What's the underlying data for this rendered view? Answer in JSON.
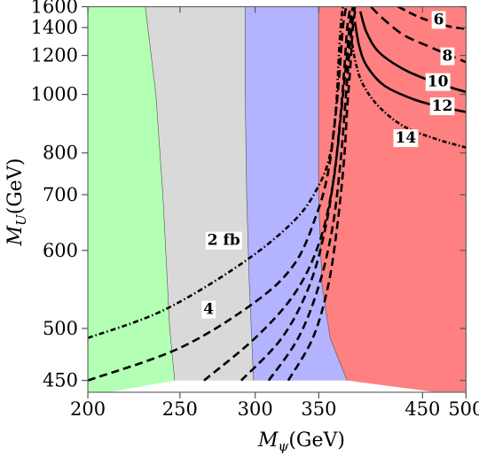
{
  "chart_data": {
    "type": "area",
    "xlabel": {
      "main": "M",
      "sub": "ψ",
      "unit": "(GeV)"
    },
    "ylabel": {
      "main": "M",
      "sub": "U",
      "unit": "(GeV)"
    },
    "xlim": [
      197,
      505
    ],
    "ylim": [
      440,
      1625
    ],
    "x_ticks": [
      200,
      250,
      300,
      350,
      450,
      500
    ],
    "y_ticks": [
      450,
      500,
      600,
      700,
      800,
      1000,
      1200,
      1400,
      1600
    ],
    "frame_top_y": 1600,
    "regions": [
      {
        "name": "green",
        "color": "#b3ffb3",
        "right_boundary": [
          [
            230,
            1600
          ],
          [
            236,
            1000
          ],
          [
            240,
            700
          ],
          [
            244,
            500
          ],
          [
            247,
            450
          ]
        ]
      },
      {
        "name": "gray",
        "color": "#d9d9d9",
        "right_boundary": [
          [
            293,
            1600
          ],
          [
            293,
            1000
          ],
          [
            294,
            700
          ],
          [
            296,
            550
          ],
          [
            299,
            450
          ]
        ]
      },
      {
        "name": "blue",
        "color": "#b3b3ff",
        "right_boundary": [
          [
            350,
            1600
          ],
          [
            350,
            1000
          ],
          [
            350,
            700
          ],
          [
            353,
            550
          ],
          [
            360,
            490
          ],
          [
            375,
            450
          ]
        ]
      },
      {
        "name": "red",
        "color": "#ff8080"
      }
    ],
    "contours": [
      {
        "label": "2 fb",
        "points": [
          [
            200,
            490
          ],
          [
            240,
            520
          ],
          [
            290,
            580
          ],
          [
            330,
            650
          ],
          [
            350,
            720
          ],
          [
            360,
            800
          ],
          [
            365,
            950
          ],
          [
            367,
            1150
          ],
          [
            369,
            1400
          ],
          [
            371,
            1600
          ]
        ]
      },
      {
        "label": "4",
        "points": [
          [
            200,
            450
          ],
          [
            250,
            480
          ],
          [
            300,
            530
          ],
          [
            330,
            580
          ],
          [
            348,
            660
          ],
          [
            358,
            750
          ],
          [
            364,
            900
          ],
          [
            368,
            1100
          ],
          [
            371,
            1400
          ],
          [
            374,
            1600
          ]
        ]
      },
      {
        "label": "",
        "points": [
          [
            265,
            450
          ],
          [
            300,
            490
          ],
          [
            330,
            540
          ],
          [
            350,
            610
          ],
          [
            362,
            720
          ],
          [
            368,
            880
          ],
          [
            372,
            1100
          ],
          [
            375,
            1400
          ],
          [
            378,
            1600
          ]
        ]
      },
      {
        "label": "",
        "points": [
          [
            290,
            450
          ],
          [
            320,
            490
          ],
          [
            342,
            550
          ],
          [
            356,
            640
          ],
          [
            365,
            780
          ],
          [
            370,
            950
          ],
          [
            374,
            1150
          ],
          [
            377,
            1400
          ],
          [
            380,
            1600
          ]
        ]
      },
      {
        "label": "",
        "points": [
          [
            310,
            450
          ],
          [
            333,
            490
          ],
          [
            350,
            550
          ],
          [
            362,
            640
          ],
          [
            369,
            780
          ],
          [
            373,
            950
          ],
          [
            376,
            1150
          ],
          [
            379,
            1400
          ],
          [
            382,
            1600
          ]
        ]
      },
      {
        "label": "",
        "points": [
          [
            325,
            450
          ],
          [
            345,
            490
          ],
          [
            358,
            550
          ],
          [
            366,
            640
          ],
          [
            372,
            780
          ],
          [
            375,
            950
          ],
          [
            378,
            1150
          ],
          [
            380,
            1400
          ],
          [
            383,
            1600
          ]
        ]
      },
      {
        "label": "6",
        "points": [
          [
            424,
            1600
          ],
          [
            450,
            1480
          ],
          [
            480,
            1410
          ],
          [
            500,
            1390
          ]
        ]
      },
      {
        "label": "8",
        "points": [
          [
            397,
            1600
          ],
          [
            410,
            1470
          ],
          [
            430,
            1340
          ],
          [
            460,
            1250
          ],
          [
            500,
            1160
          ]
        ]
      },
      {
        "label": "10",
        "points": [
          [
            387,
            1550
          ],
          [
            393,
            1360
          ],
          [
            405,
            1220
          ],
          [
            430,
            1120
          ],
          [
            460,
            1060
          ],
          [
            500,
            1010
          ]
        ]
      },
      {
        "label": "12",
        "points": [
          [
            382,
            1450
          ],
          [
            386,
            1260
          ],
          [
            393,
            1140
          ],
          [
            410,
            1040
          ],
          [
            440,
            980
          ],
          [
            470,
            950
          ],
          [
            500,
            930
          ]
        ]
      },
      {
        "label": "14",
        "points": [
          [
            378,
            1350
          ],
          [
            383,
            1150
          ],
          [
            390,
            1040
          ],
          [
            405,
            950
          ],
          [
            430,
            880
          ],
          [
            465,
            840
          ],
          [
            500,
            815
          ]
        ]
      }
    ]
  }
}
